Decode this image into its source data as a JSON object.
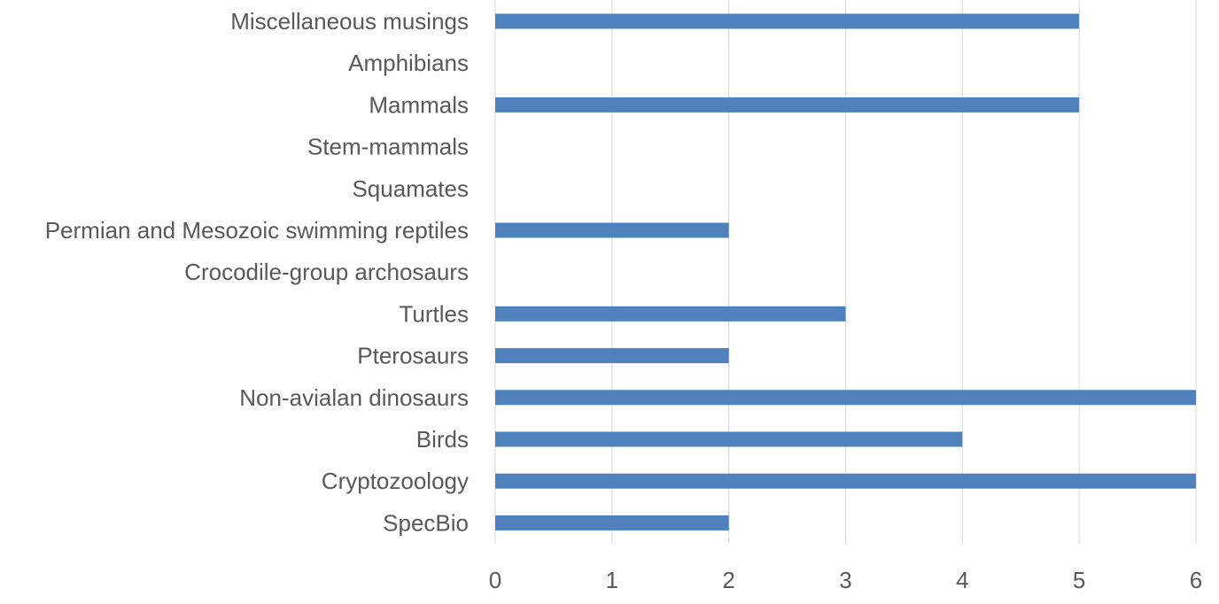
{
  "chart_data": {
    "type": "bar",
    "orientation": "horizontal",
    "categories": [
      "Miscellaneous musings",
      "Amphibians",
      "Mammals",
      "Stem-mammals",
      "Squamates",
      "Permian and Mesozoic swimming reptiles",
      "Crocodile-group archosaurs",
      "Turtles",
      "Pterosaurs",
      "Non-avialan dinosaurs",
      "Birds",
      "Cryptozoology",
      "SpecBio"
    ],
    "values": [
      5,
      0,
      5,
      0,
      0,
      2,
      0,
      3,
      2,
      6,
      4,
      6,
      2
    ],
    "xticks": [
      "0",
      "1",
      "2",
      "3",
      "4",
      "5",
      "6"
    ],
    "xlim": [
      0,
      6
    ],
    "grid": "vertical",
    "legend": "none",
    "colors": {
      "bar": "#4f81bd",
      "grid": "#d9d9d9",
      "text": "#595959"
    }
  }
}
